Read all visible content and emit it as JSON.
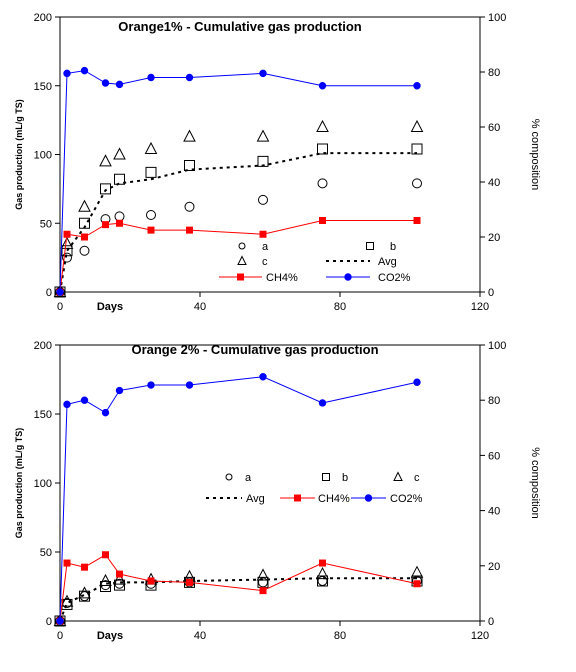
{
  "chart_data": [
    {
      "type": "scatter",
      "title": "Orange1% - Cumulative gas production",
      "xlabel": "Days",
      "ylabel": "Gas production (mL/g TS)",
      "y2label": "% composition",
      "xlim": [
        0,
        120
      ],
      "ylim": [
        0,
        200
      ],
      "y2lim": [
        0,
        100
      ],
      "xticks": [
        "0",
        "40",
        "80",
        "120"
      ],
      "yticks": [
        "0",
        "50",
        "100",
        "150",
        "200"
      ],
      "y2ticks": [
        "0",
        "20",
        "40",
        "60",
        "80",
        "100"
      ],
      "grid": false,
      "legend_position": "bottom-right",
      "legend": {
        "a": "a",
        "b": "b",
        "c": "c",
        "avg": "Avg",
        "ch4": "CH4%",
        "co2": "CO2%"
      },
      "series": [
        {
          "key": "a",
          "name": "a",
          "marker": "circle",
          "axis": "left",
          "x": [
            0,
            2,
            7,
            13,
            17,
            26,
            37,
            58,
            75,
            102
          ],
          "y": [
            0,
            25,
            30,
            53,
            55,
            56,
            62,
            67,
            79,
            79
          ]
        },
        {
          "key": "b",
          "name": "b",
          "marker": "square",
          "axis": "left",
          "x": [
            0,
            2,
            7,
            13,
            17,
            26,
            37,
            58,
            75,
            102
          ],
          "y": [
            0,
            30,
            50,
            75,
            82,
            87,
            92,
            95,
            104,
            104
          ]
        },
        {
          "key": "c",
          "name": "c",
          "marker": "triangle",
          "axis": "left",
          "x": [
            0,
            2,
            7,
            13,
            17,
            26,
            37,
            58,
            75,
            102
          ],
          "y": [
            0,
            35,
            62,
            95,
            100,
            104,
            113,
            113,
            120,
            120
          ]
        },
        {
          "key": "avg",
          "name": "Avg",
          "style": "dotted",
          "axis": "left",
          "x": [
            0,
            2,
            7,
            13,
            17,
            26,
            37,
            58,
            75,
            102
          ],
          "y": [
            0,
            30,
            47,
            74,
            79,
            82,
            89,
            92,
            101,
            101
          ]
        },
        {
          "key": "ch4",
          "name": "CH4%",
          "style": "line-square",
          "color": "#ff0000",
          "axis": "right",
          "x": [
            0,
            2,
            7,
            13,
            17,
            26,
            37,
            58,
            75,
            102
          ],
          "y": [
            0,
            21,
            20,
            24.5,
            25,
            22.5,
            22.5,
            21,
            26,
            26
          ]
        },
        {
          "key": "co2",
          "name": "CO2%",
          "style": "line-circle",
          "color": "#0000ff",
          "axis": "right",
          "x": [
            0,
            2,
            7,
            13,
            17,
            26,
            37,
            58,
            75,
            102
          ],
          "y": [
            0,
            79.5,
            80.5,
            76,
            75.5,
            78,
            78,
            79.5,
            75,
            75
          ]
        }
      ]
    },
    {
      "type": "scatter",
      "title": "Orange 2%   - Cumulative gas production",
      "xlabel": "Days",
      "ylabel": "Gas production (mL/g TS)",
      "y2label": "% composition",
      "xlim": [
        0,
        120
      ],
      "ylim": [
        0,
        200
      ],
      "y2lim": [
        0,
        100
      ],
      "xticks": [
        "0",
        "40",
        "80",
        "120"
      ],
      "yticks": [
        "0",
        "50",
        "100",
        "150",
        "200"
      ],
      "y2ticks": [
        "0",
        "20",
        "40",
        "60",
        "80",
        "100"
      ],
      "grid": false,
      "legend_position": "center-right",
      "legend": {
        "a": "a",
        "b": "b",
        "c": "c",
        "avg": "Avg",
        "ch4": "CH4%",
        "co2": "CO2%"
      },
      "series": [
        {
          "key": "a",
          "name": "a",
          "marker": "circle",
          "axis": "left",
          "x": [
            0,
            2,
            7,
            13,
            17,
            26,
            37,
            58,
            75,
            102
          ],
          "y": [
            0,
            13,
            18,
            26,
            27,
            27,
            28,
            28,
            29,
            29
          ]
        },
        {
          "key": "b",
          "name": "b",
          "marker": "square",
          "axis": "left",
          "x": [
            0,
            2,
            7,
            13,
            17,
            26,
            37,
            58,
            75,
            102
          ],
          "y": [
            0,
            12,
            18,
            25,
            26,
            26,
            28,
            28,
            29,
            29
          ]
        },
        {
          "key": "c",
          "name": "c",
          "marker": "triangle",
          "axis": "left",
          "x": [
            0,
            2,
            7,
            13,
            17,
            26,
            37,
            58,
            75,
            102
          ],
          "y": [
            0,
            14,
            20,
            29,
            30,
            30,
            32,
            33,
            34,
            35
          ]
        },
        {
          "key": "avg",
          "name": "Avg",
          "style": "dotted",
          "axis": "left",
          "x": [
            0,
            2,
            7,
            13,
            17,
            26,
            37,
            58,
            75,
            102
          ],
          "y": [
            0,
            13,
            19,
            27,
            28,
            28,
            29,
            30,
            31,
            31
          ]
        },
        {
          "key": "ch4",
          "name": "CH4%",
          "style": "line-square",
          "color": "#ff0000",
          "axis": "right",
          "x": [
            0,
            2,
            7,
            13,
            17,
            26,
            37,
            58,
            75,
            102
          ],
          "y": [
            0,
            21,
            19.5,
            24,
            17,
            14.5,
            14,
            11,
            21,
            13.5
          ]
        },
        {
          "key": "co2",
          "name": "CO2%",
          "style": "line-circle",
          "color": "#0000ff",
          "axis": "right",
          "x": [
            0,
            2,
            7,
            13,
            17,
            26,
            37,
            58,
            75,
            102
          ],
          "y": [
            0,
            78.5,
            80,
            75.5,
            83.5,
            85.5,
            85.5,
            88.5,
            79,
            86.5
          ]
        }
      ]
    }
  ]
}
